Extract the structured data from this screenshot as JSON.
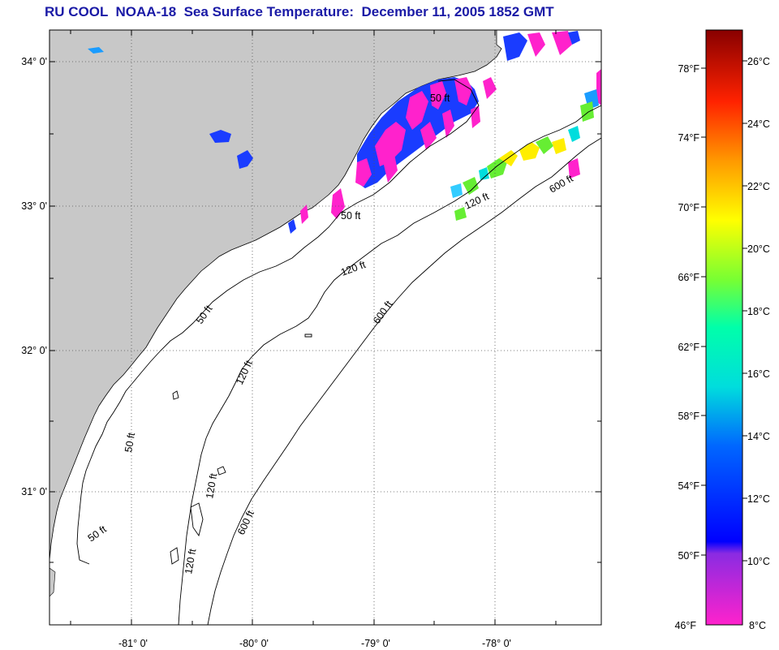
{
  "title": "RU COOL  NOAA-18  Sea Surface Temperature:  December 11, 2005 1852 GMT",
  "lat_labels": [
    "34° 0'",
    "33° 0'",
    "32° 0'",
    "31° 0'"
  ],
  "lon_labels": [
    "-81° 0'",
    "-80° 0'",
    "-79° 0'",
    "-78° 0'"
  ],
  "contour_labels": {
    "c50": "50 ft",
    "c120": "120 ft",
    "c600": "600 ft"
  },
  "colorbar": {
    "f_labels": [
      "78°F",
      "74°F",
      "70°F",
      "66°F",
      "62°F",
      "58°F",
      "54°F",
      "50°F",
      "46°F"
    ],
    "c_labels": [
      "26°C",
      "24°C",
      "22°C",
      "20°C",
      "18°C",
      "16°C",
      "14°C",
      "12°C",
      "10°C",
      "8°C"
    ]
  },
  "colors": {
    "land": "#c8c8c8",
    "title": "#1a1aa6",
    "sst_cold": "#ff22cc",
    "sst_blue": "#1a3cff",
    "sst_green": "#66ee33",
    "sst_yellow": "#ffee00"
  }
}
